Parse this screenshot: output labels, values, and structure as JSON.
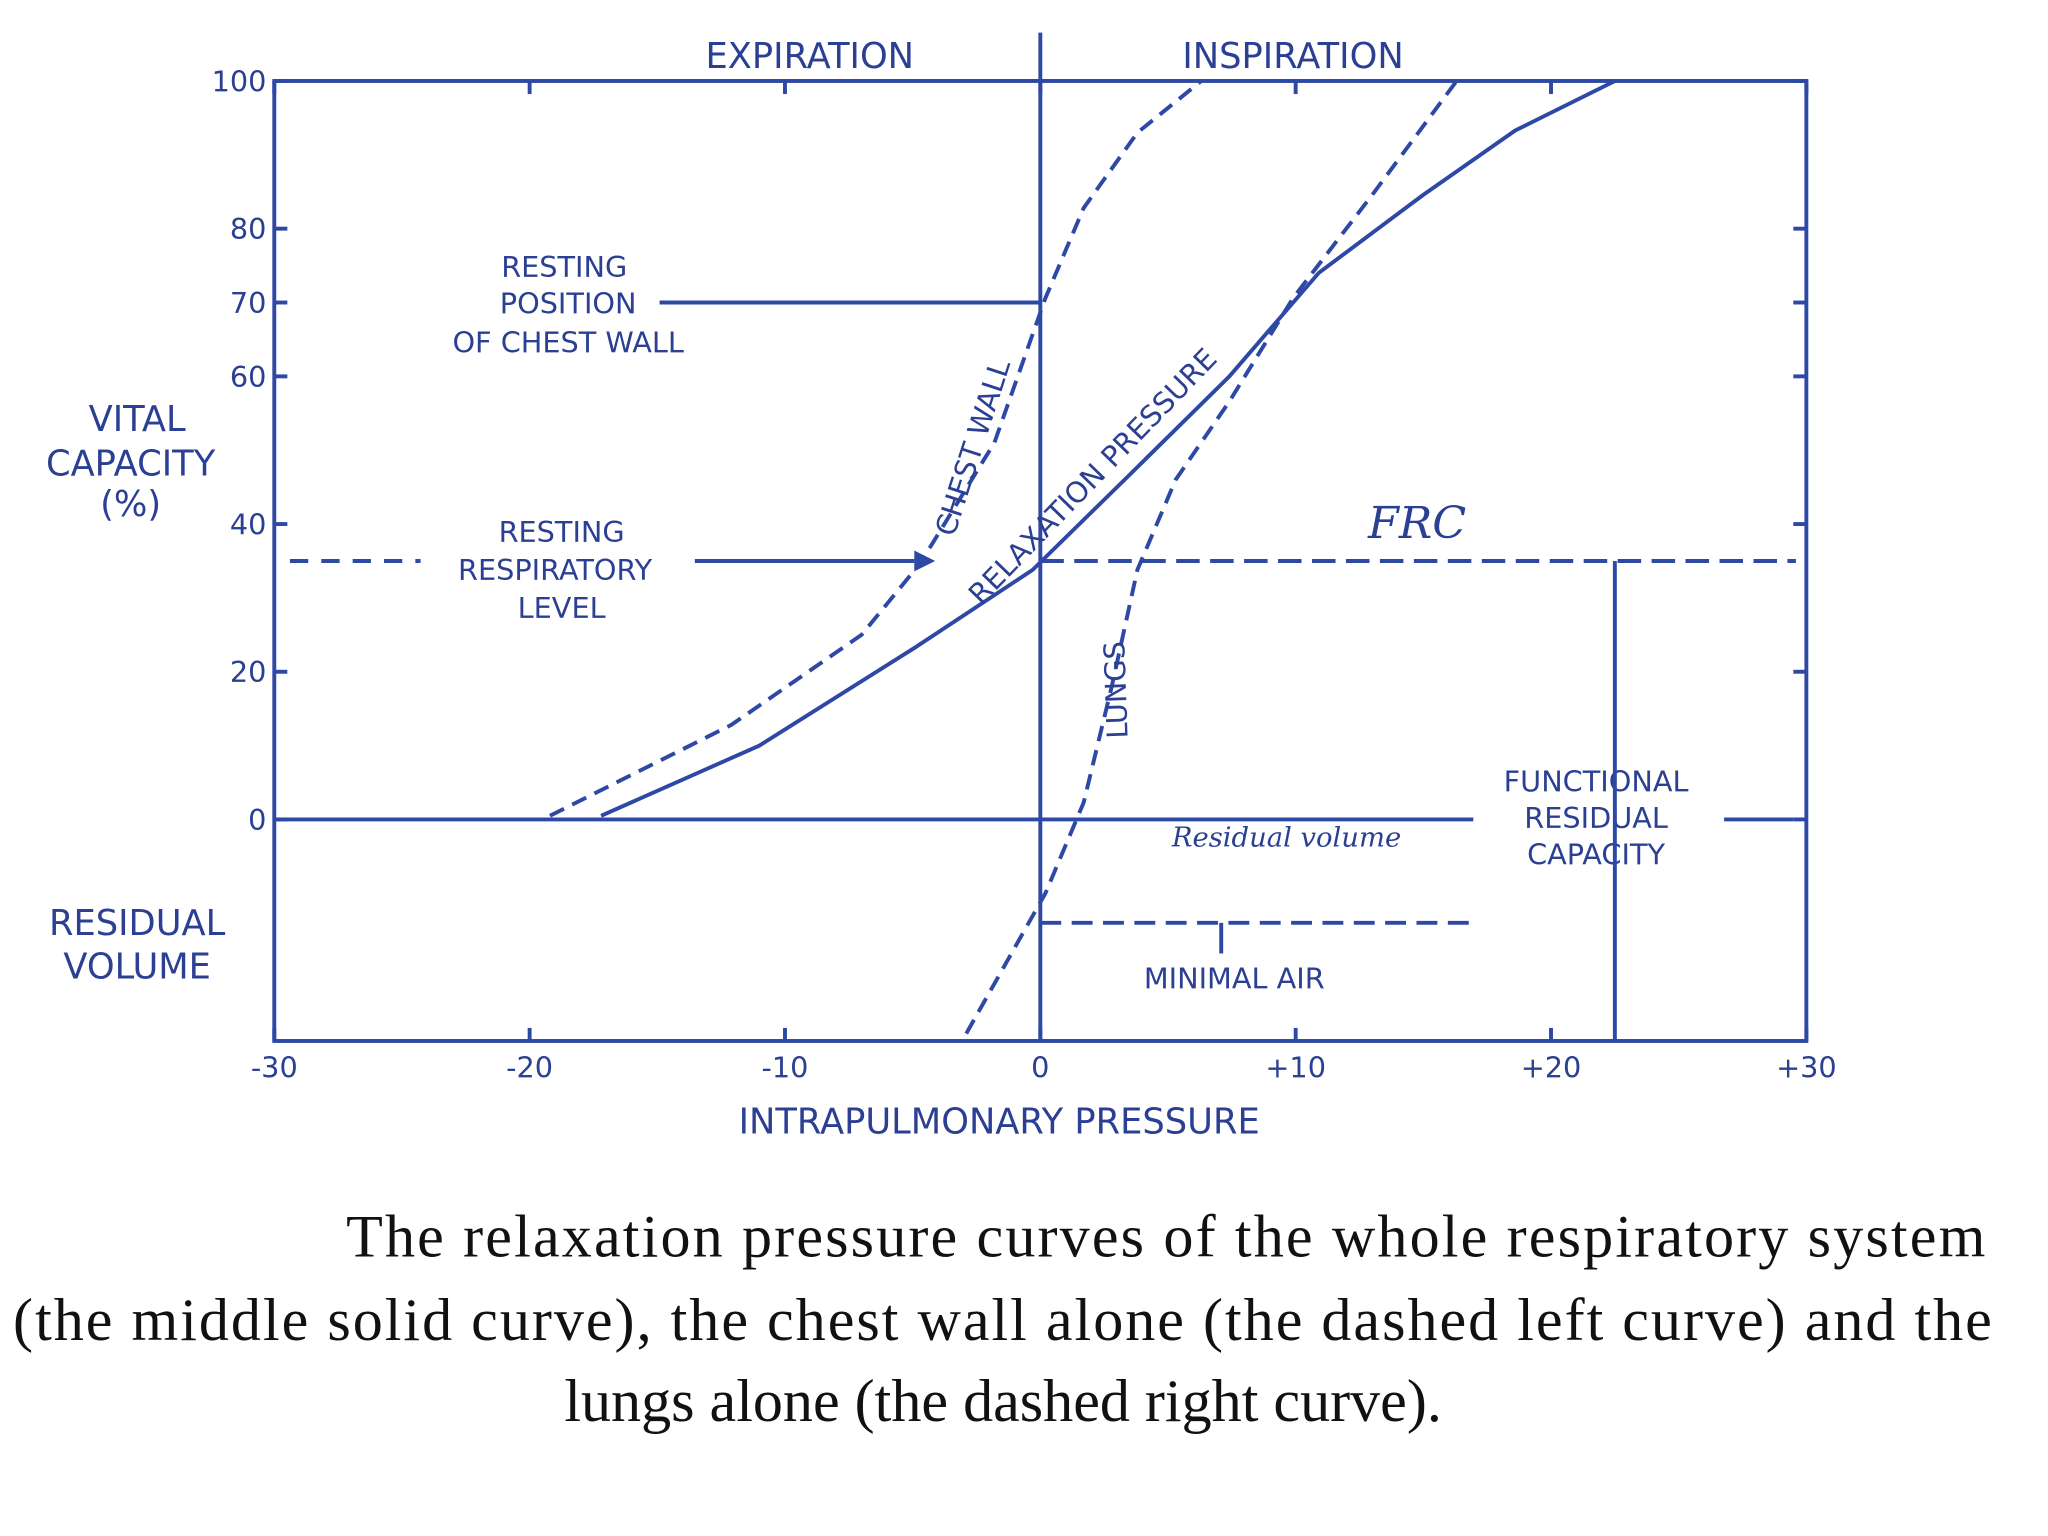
{
  "chart_data": {
    "type": "line",
    "xlabel": "INTRAPULMONARY PRESSURE",
    "ylabel": [
      "VITAL",
      "CAPACITY",
      "(%)"
    ],
    "annotations": [
      "EXPIRATION",
      "INSPIRATION",
      "RESTING",
      "POSITION",
      "OF CHEST WALL",
      "RESTING",
      "RESPIRATORY",
      "LEVEL",
      "FRC",
      "Residual volume",
      "FUNCTIONAL",
      "RESIDUAL",
      "CAPACITY",
      "MINIMAL AIR",
      "RESIDUAL",
      "VOLUME"
    ],
    "caption": [
      "The relaxation pressure curves of the whole respiratory system",
      "(the middle solid curve), the chest wall alone (the dashed left curve) and the",
      "lungs alone (the dashed right curve)."
    ],
    "xlim": [
      -30,
      30
    ],
    "ylim": [
      -30,
      100
    ],
    "xticks": [
      -30,
      -20,
      -10,
      0,
      {
        "value": 10,
        "label": "+10"
      },
      {
        "value": 20,
        "label": "+20"
      },
      {
        "value": 30,
        "label": "+30"
      }
    ],
    "yticks": [
      0,
      20,
      40,
      60,
      70,
      80,
      100
    ],
    "reference_lines": {
      "resting_chest_wall": 70,
      "resting_level": 35,
      "residual_volume": 0,
      "minimal_air": -14,
      "frc_pressure": 22.5,
      "phase_boundary": 0
    },
    "series": [
      {
        "name": "CHEST WALL",
        "color": "#2e48a6",
        "dashed": true,
        "x": [
          -19.2,
          -12.1,
          -7,
          -4.7,
          -1.8,
          0.2,
          1.7,
          3.8,
          6.3
        ],
        "values": [
          0.5,
          12.8,
          25,
          34.7,
          51,
          70.6,
          82.8,
          93,
          100
        ]
      },
      {
        "name": "RELAXATION PRESSURE",
        "color": "#2e48a6",
        "dashed": false,
        "x": [
          -17.2,
          -11,
          -4.9,
          -0.3,
          3.3,
          7.4,
          10.9,
          15,
          18.6,
          22.5
        ],
        "values": [
          0.5,
          10,
          23.3,
          33.8,
          46,
          60,
          74,
          84.6,
          93.3,
          100
        ]
      },
      {
        "name": "LUNGS",
        "color": "#2e48a6",
        "dashed": true,
        "x": [
          -2.9,
          0.2,
          1.7,
          2.8,
          3.8,
          5.3,
          7.4,
          9.9,
          13,
          16.3
        ],
        "values": [
          -29,
          -10,
          2.3,
          18,
          33.8,
          46,
          56.6,
          70.6,
          84.6,
          100
        ]
      }
    ]
  }
}
